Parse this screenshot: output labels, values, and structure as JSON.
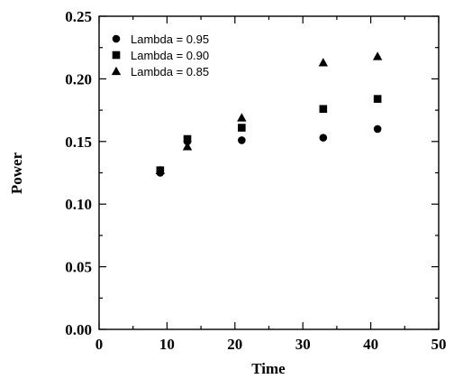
{
  "chart_data": {
    "type": "scatter",
    "title": "",
    "xlabel": "Time",
    "ylabel": "Power",
    "xlim": [
      0,
      50
    ],
    "ylim": [
      0.0,
      0.25
    ],
    "x_ticks": [
      "0",
      "10",
      "20",
      "30",
      "40",
      "50"
    ],
    "y_ticks": [
      "0.00",
      "0.05",
      "0.10",
      "0.15",
      "0.20",
      "0.25"
    ],
    "grid": false,
    "legend_position": "top-left",
    "series": [
      {
        "name": "Lambda = 0.95",
        "marker": "circle",
        "points": [
          [
            9,
            0.125
          ],
          [
            13,
            0.15
          ],
          [
            21,
            0.151
          ],
          [
            33,
            0.153
          ],
          [
            41,
            0.16
          ]
        ]
      },
      {
        "name": "Lambda = 0.90",
        "marker": "square",
        "points": [
          [
            9,
            0.127
          ],
          [
            13,
            0.152
          ],
          [
            21,
            0.161
          ],
          [
            33,
            0.176
          ],
          [
            41,
            0.184
          ]
        ]
      },
      {
        "name": "Lambda = 0.85",
        "marker": "triangle",
        "points": [
          [
            9,
            0.127
          ],
          [
            13,
            0.146
          ],
          [
            21,
            0.169
          ],
          [
            33,
            0.213
          ],
          [
            41,
            0.218
          ]
        ]
      }
    ]
  }
}
